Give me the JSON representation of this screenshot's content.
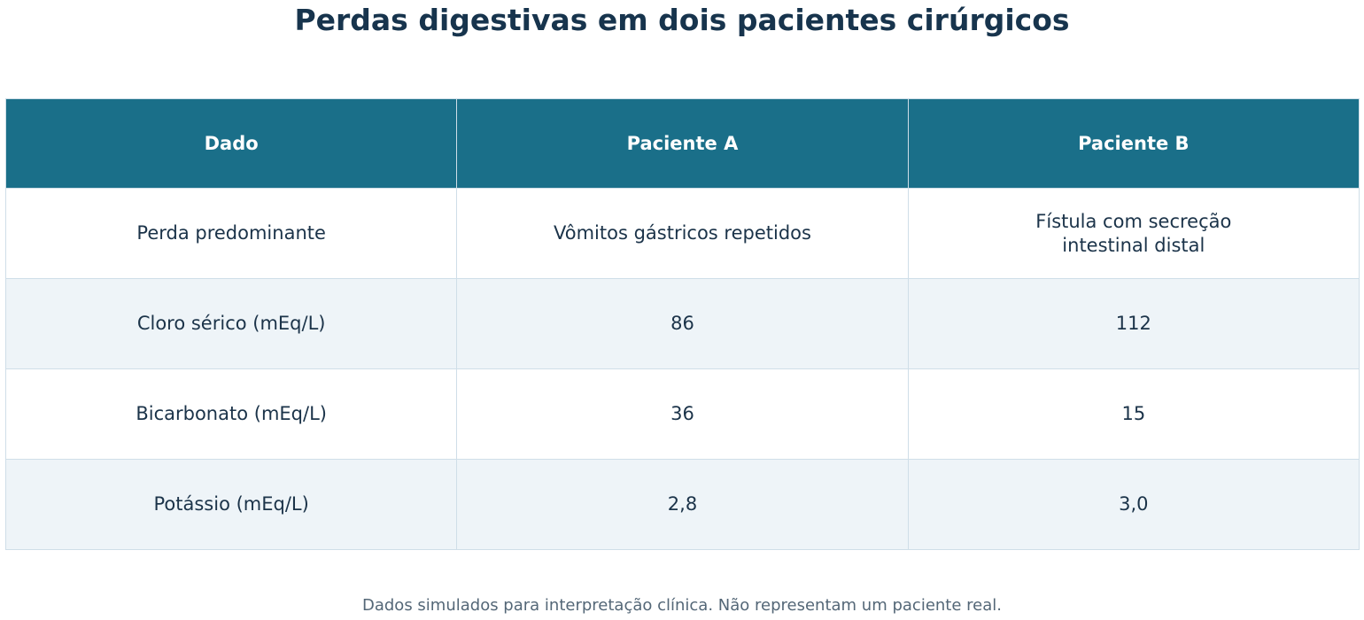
{
  "chart_data": {
    "type": "table",
    "title": "Perdas digestivas em dois pacientes cirúrgicos",
    "columns": [
      "Dado",
      "Paciente A",
      "Paciente B"
    ],
    "rows": [
      [
        "Perda predominante",
        "Vômitos gástricos repetidos",
        "Fístula com secreção intestinal distal"
      ],
      [
        "Cloro sérico (mEq/L)",
        "86",
        "112"
      ],
      [
        "Bicarbonato (mEq/L)",
        "36",
        "15"
      ],
      [
        "Potássio (mEq/L)",
        "2,8",
        "3,0"
      ]
    ],
    "footnote": "Dados simulados para interpretação clínica. Não representam um paciente real."
  },
  "colors": {
    "header_background": "#1a6f89",
    "header_text": "#ffffff",
    "alt_row_background": "#eef4f8",
    "title_text": "#17344d",
    "border": "#cfdee8"
  }
}
